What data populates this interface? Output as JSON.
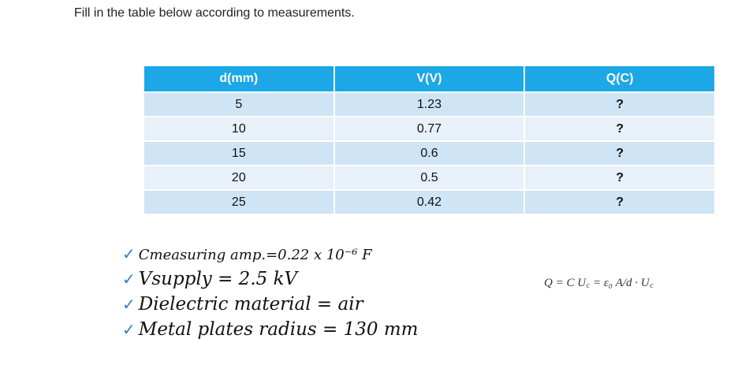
{
  "instruction": "Fill in the table below according to measurements.",
  "table": {
    "headers": [
      "d(mm)",
      "V(V)",
      "Q(C)"
    ],
    "rows": [
      [
        "5",
        "1.23",
        "?"
      ],
      [
        "10",
        "0.77",
        "?"
      ],
      [
        "15",
        "0.6",
        "?"
      ],
      [
        "20",
        "0.5",
        "?"
      ],
      [
        "25",
        "0.42",
        "?"
      ]
    ]
  },
  "notes": [
    "Cmeasuring amp.=0.22 x 10⁻⁶ F",
    "Vsupply = 2.5 kV",
    "Dielectric material = air",
    "Metal plates radius = 130 mm"
  ],
  "formula": "Q = C U꜀ = ε₀ A/d · U꜀",
  "colors": {
    "header": "#1ca7e6",
    "row_odd": "#cfe4f5",
    "row_even": "#e8f1f9",
    "check": "#2e7cc6"
  },
  "icons": {
    "bullet": "checkmark-icon"
  }
}
